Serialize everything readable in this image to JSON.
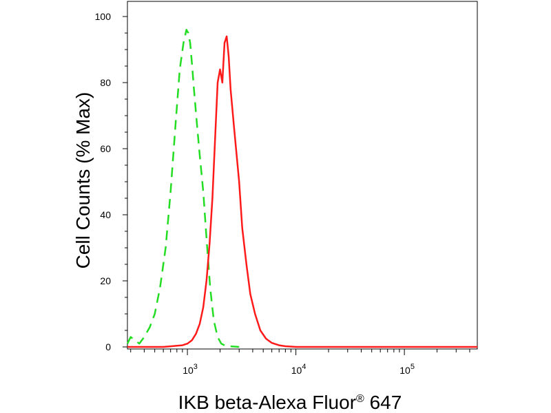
{
  "chart_data": {
    "type": "line",
    "xlabel": "IKB beta-Alexa Fluor",
    "xlabel_superscript": "®",
    "xlabel_suffix": " 647",
    "ylabel": "Cell Counts (% Max)",
    "x_scale": "log",
    "xlim": [
      280,
      470000
    ],
    "ylim": [
      0,
      100
    ],
    "y_ticks": [
      0,
      20,
      40,
      60,
      80,
      100
    ],
    "x_major_ticks": [
      {
        "value": 1000,
        "base": "10",
        "exp": "3"
      },
      {
        "value": 10000,
        "base": "10",
        "exp": "4"
      },
      {
        "value": 100000,
        "base": "10",
        "exp": "5"
      }
    ],
    "grid": false,
    "legend": "none",
    "series": [
      {
        "color": "#22dd22",
        "style": "dashed",
        "x": [
          280,
          300,
          330,
          360,
          400,
          450,
          500,
          560,
          630,
          700,
          780,
          850,
          920,
          980,
          1020,
          1060,
          1100,
          1150,
          1220,
          1300,
          1400,
          1500,
          1620,
          1750,
          1900,
          2050,
          2200,
          2400,
          2700,
          3000
        ],
        "y": [
          1,
          3,
          2,
          1,
          3,
          6,
          10,
          18,
          30,
          47,
          68,
          84,
          92,
          96,
          95,
          92,
          86,
          78,
          68,
          58,
          47,
          33,
          18,
          8,
          3,
          1,
          0.5,
          0.2,
          0.1,
          0
        ]
      },
      {
        "color": "#ff1a1a",
        "style": "solid",
        "x": [
          280,
          600,
          900,
          1000,
          1100,
          1200,
          1300,
          1400,
          1500,
          1600,
          1700,
          1800,
          1900,
          2000,
          2100,
          2200,
          2300,
          2400,
          2500,
          2700,
          3000,
          3200,
          3500,
          3800,
          4200,
          4700,
          5300,
          6000,
          7000,
          8000,
          9000,
          10000,
          20000,
          100000,
          470000
        ],
        "y": [
          0,
          0,
          0.5,
          1,
          2,
          4,
          7,
          12,
          20,
          31,
          45,
          63,
          80,
          84,
          80,
          92,
          94,
          88,
          78,
          66,
          50,
          36,
          25,
          16,
          10,
          5,
          2.5,
          1.2,
          0.5,
          0.2,
          0.1,
          0,
          0,
          0,
          0
        ]
      }
    ]
  }
}
